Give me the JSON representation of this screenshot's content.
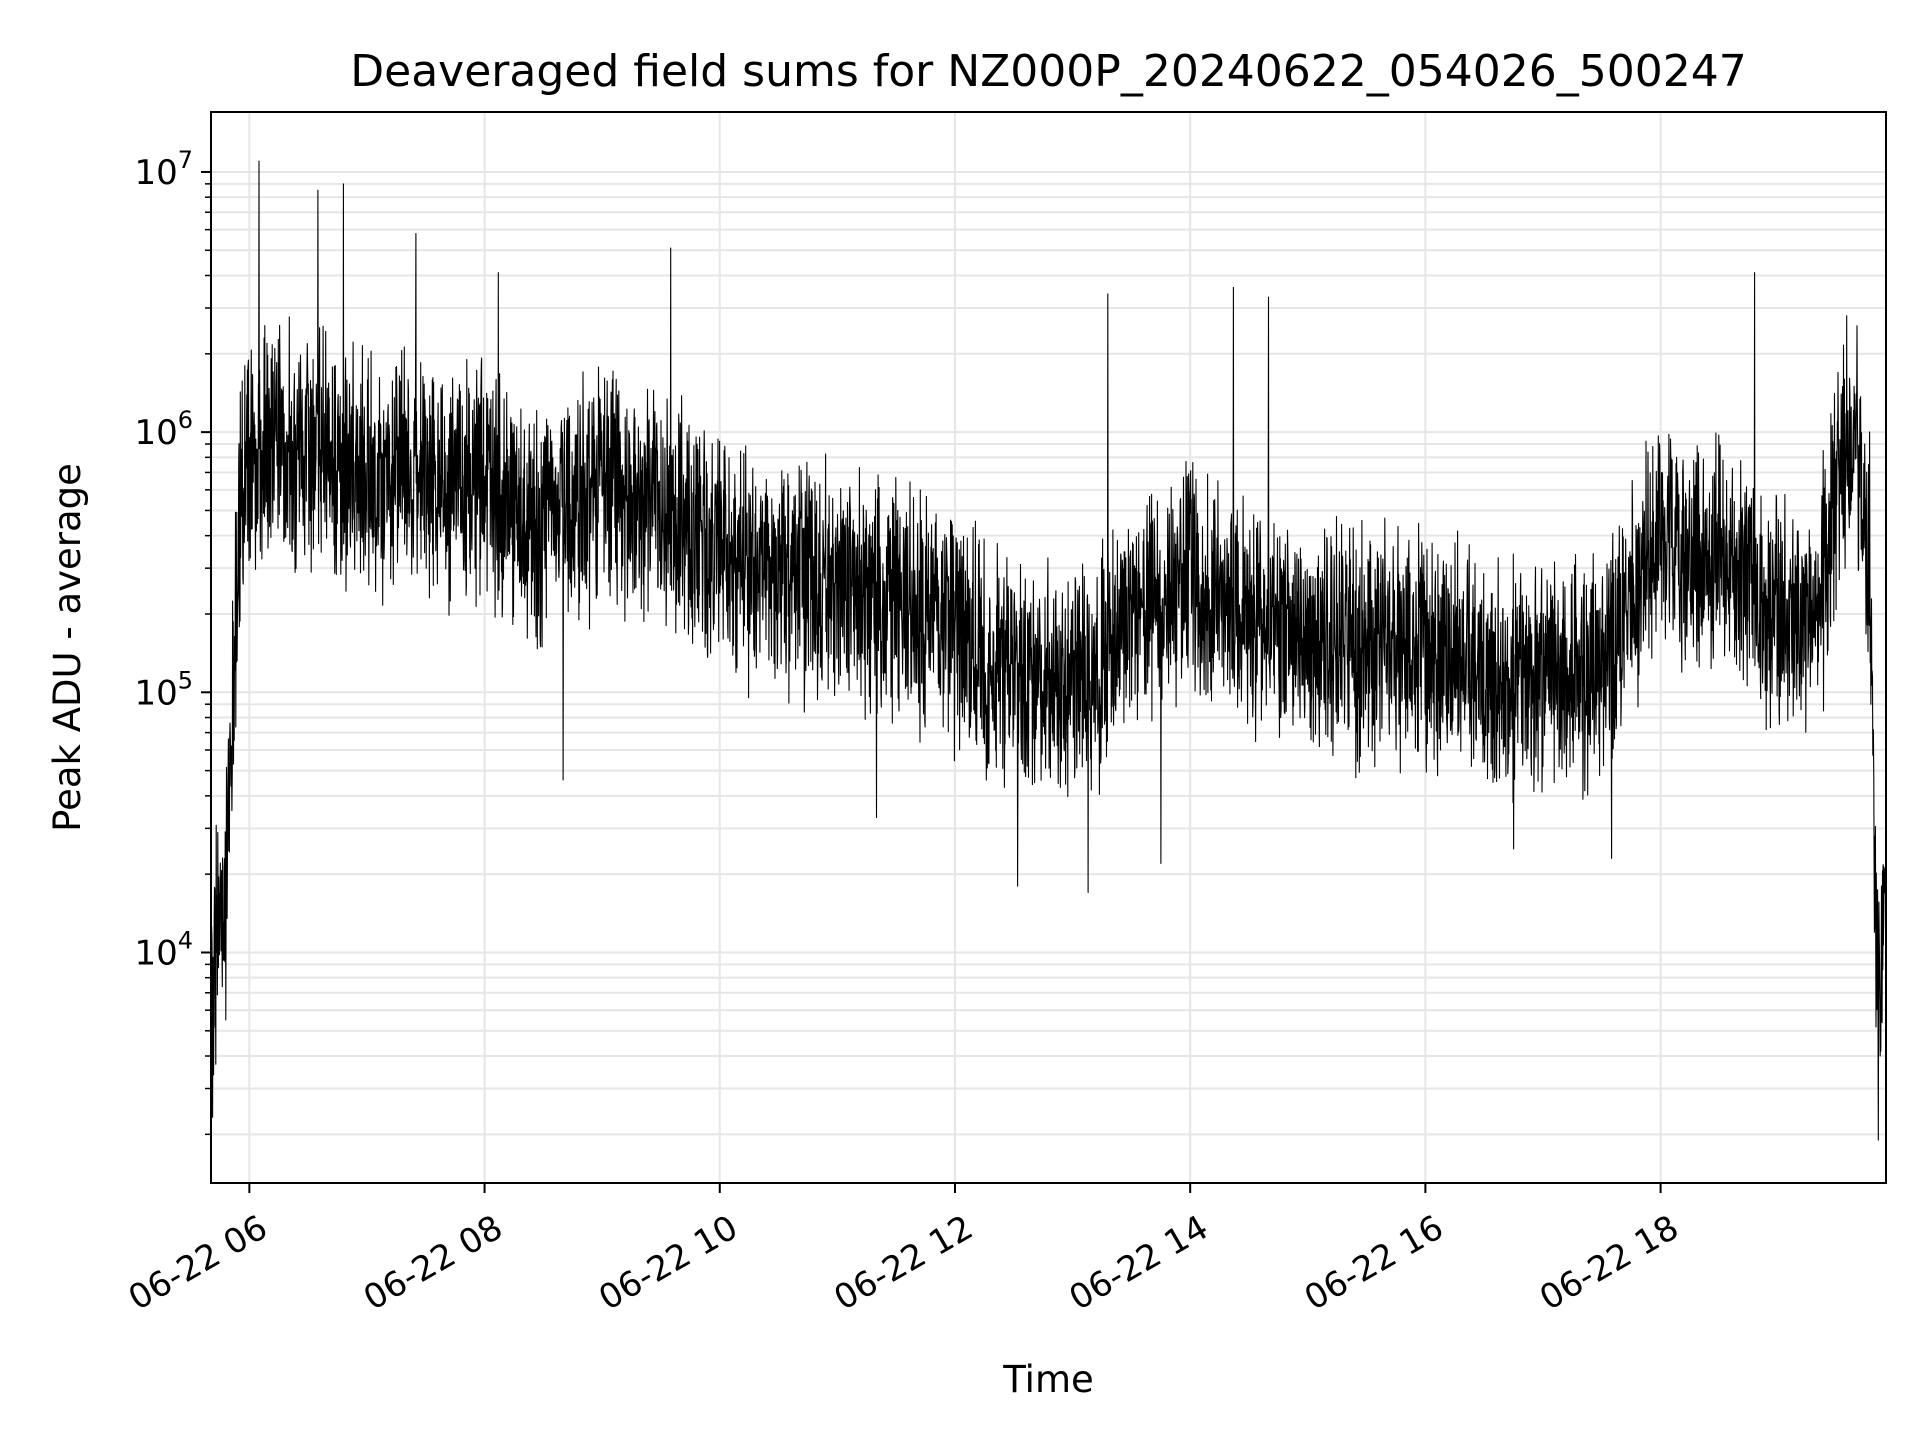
{
  "chart_data": {
    "type": "line",
    "title": "Deaveraged field sums for NZ000P_20240622_054026_500247",
    "xlabel": "Time",
    "ylabel": "Peak ADU - average",
    "x_range": [
      "2024-06-22 05:40:26",
      "2024-06-22 19:55:00"
    ],
    "yscale": "log",
    "ylim": [
      1300,
      17000000
    ],
    "grid": true,
    "x_ticks": [
      {
        "x": "2024-06-22 06:00",
        "label": "06-22 06"
      },
      {
        "x": "2024-06-22 08:00",
        "label": "06-22 08"
      },
      {
        "x": "2024-06-22 10:00",
        "label": "06-22 10"
      },
      {
        "x": "2024-06-22 12:00",
        "label": "06-22 12"
      },
      {
        "x": "2024-06-22 14:00",
        "label": "06-22 14"
      },
      {
        "x": "2024-06-22 16:00",
        "label": "06-22 16"
      },
      {
        "x": "2024-06-22 18:00",
        "label": "06-22 18"
      }
    ],
    "y_ticks": [
      {
        "value": 10000,
        "base": "10",
        "exp": "4"
      },
      {
        "value": 100000,
        "base": "10",
        "exp": "5"
      },
      {
        "value": 1000000,
        "base": "10",
        "exp": "6"
      },
      {
        "value": 10000000,
        "base": "10",
        "exp": "7"
      }
    ],
    "series": [
      {
        "line_color": "#000000",
        "noise": 0.33,
        "points": [
          {
            "x": "2024-06-22 05:40",
            "y": 4000
          },
          {
            "x": "2024-06-22 05:43",
            "y": 12000
          },
          {
            "x": "2024-06-22 05:47",
            "y": 20000
          },
          {
            "x": "2024-06-22 05:50",
            "y": 35000
          },
          {
            "x": "2024-06-22 05:53",
            "y": 200000
          },
          {
            "x": "2024-06-22 05:57",
            "y": 800000
          },
          {
            "x": "2024-06-22 06:15",
            "y": 900000
          },
          {
            "x": "2024-06-22 06:40",
            "y": 800000
          },
          {
            "x": "2024-06-22 07:00",
            "y": 700000
          },
          {
            "x": "2024-06-22 07:30",
            "y": 650000
          },
          {
            "x": "2024-06-22 08:00",
            "y": 650000
          },
          {
            "x": "2024-06-22 08:30",
            "y": 400000
          },
          {
            "x": "2024-06-22 09:00",
            "y": 600000
          },
          {
            "x": "2024-06-22 09:30",
            "y": 500000
          },
          {
            "x": "2024-06-22 10:00",
            "y": 350000
          },
          {
            "x": "2024-06-22 10:30",
            "y": 280000
          },
          {
            "x": "2024-06-22 11:00",
            "y": 260000
          },
          {
            "x": "2024-06-22 11:30",
            "y": 220000
          },
          {
            "x": "2024-06-22 12:00",
            "y": 170000
          },
          {
            "x": "2024-06-22 12:30",
            "y": 120000
          },
          {
            "x": "2024-06-22 13:00",
            "y": 100000
          },
          {
            "x": "2024-06-22 13:30",
            "y": 180000
          },
          {
            "x": "2024-06-22 14:00",
            "y": 300000
          },
          {
            "x": "2024-06-22 14:30",
            "y": 180000
          },
          {
            "x": "2024-06-22 15:00",
            "y": 170000
          },
          {
            "x": "2024-06-22 15:30",
            "y": 150000
          },
          {
            "x": "2024-06-22 16:00",
            "y": 140000
          },
          {
            "x": "2024-06-22 16:30",
            "y": 120000
          },
          {
            "x": "2024-06-22 17:00",
            "y": 110000
          },
          {
            "x": "2024-06-22 17:30",
            "y": 130000
          },
          {
            "x": "2024-06-22 18:00",
            "y": 400000
          },
          {
            "x": "2024-06-22 18:30",
            "y": 350000
          },
          {
            "x": "2024-06-22 19:00",
            "y": 200000
          },
          {
            "x": "2024-06-22 19:20",
            "y": 200000
          },
          {
            "x": "2024-06-22 19:32",
            "y": 700000
          },
          {
            "x": "2024-06-22 19:40",
            "y": 900000
          },
          {
            "x": "2024-06-22 19:47",
            "y": 300000
          },
          {
            "x": "2024-06-22 19:50",
            "y": 8000
          },
          {
            "x": "2024-06-22 19:55",
            "y": 12000
          }
        ],
        "spikes_up": [
          {
            "x": "2024-06-22 06:05",
            "y": 11000000
          },
          {
            "x": "2024-06-22 06:35",
            "y": 8500000
          },
          {
            "x": "2024-06-22 06:48",
            "y": 9000000
          },
          {
            "x": "2024-06-22 07:25",
            "y": 5800000
          },
          {
            "x": "2024-06-22 08:07",
            "y": 4100000
          },
          {
            "x": "2024-06-22 09:35",
            "y": 5100000
          },
          {
            "x": "2024-06-22 13:18",
            "y": 3400000
          },
          {
            "x": "2024-06-22 14:22",
            "y": 3600000
          },
          {
            "x": "2024-06-22 14:40",
            "y": 3300000
          },
          {
            "x": "2024-06-22 18:48",
            "y": 4100000
          },
          {
            "x": "2024-06-22 19:35",
            "y": 2800000
          }
        ],
        "spikes_down": [
          {
            "x": "2024-06-22 05:48",
            "y": 5500
          },
          {
            "x": "2024-06-22 08:40",
            "y": 46000
          },
          {
            "x": "2024-06-22 11:20",
            "y": 33000
          },
          {
            "x": "2024-06-22 12:32",
            "y": 18000
          },
          {
            "x": "2024-06-22 13:08",
            "y": 17000
          },
          {
            "x": "2024-06-22 13:45",
            "y": 22000
          },
          {
            "x": "2024-06-22 16:45",
            "y": 25000
          },
          {
            "x": "2024-06-22 17:35",
            "y": 23000
          },
          {
            "x": "2024-06-22 19:51",
            "y": 1900
          },
          {
            "x": "2024-06-22 19:52",
            "y": 4000
          }
        ]
      }
    ]
  }
}
